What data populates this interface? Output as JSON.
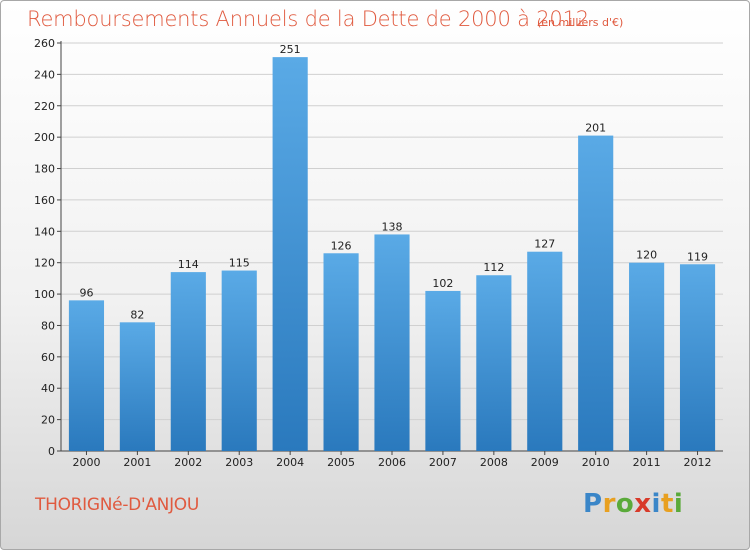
{
  "header": {
    "title": "Remboursements Annuels de la Dette de 2000 à 2012",
    "subtitle": "(en milliers d'€)"
  },
  "footer": {
    "place": "THORIGNé-D'ANJOU",
    "logo_letters": [
      "P",
      "r",
      "o",
      "x",
      "i",
      "t",
      "i"
    ],
    "logo_colors": [
      "#3a86c8",
      "#e8a020",
      "#5aaa3a",
      "#d83a2a",
      "#3a86c8",
      "#e8a020",
      "#5aaa3a"
    ]
  },
  "colors": {
    "bar_light": "#5aaae6",
    "bar_dark": "#2a79bd",
    "title": "#e05a3f",
    "grid": "#d0d0d0"
  },
  "chart_data": {
    "type": "bar",
    "title": "Remboursements Annuels de la Dette de 2000 à 2012",
    "categories": [
      "2000",
      "2001",
      "2002",
      "2003",
      "2004",
      "2005",
      "2006",
      "2007",
      "2008",
      "2009",
      "2010",
      "2011",
      "2012"
    ],
    "values": [
      96,
      82,
      114,
      115,
      251,
      126,
      138,
      102,
      112,
      127,
      201,
      120,
      119
    ],
    "ylim": [
      0,
      260
    ],
    "yticks": [
      0,
      20,
      40,
      60,
      80,
      100,
      120,
      140,
      160,
      180,
      200,
      220,
      240,
      260
    ],
    "grid": true,
    "xlabel": "",
    "ylabel": ""
  }
}
